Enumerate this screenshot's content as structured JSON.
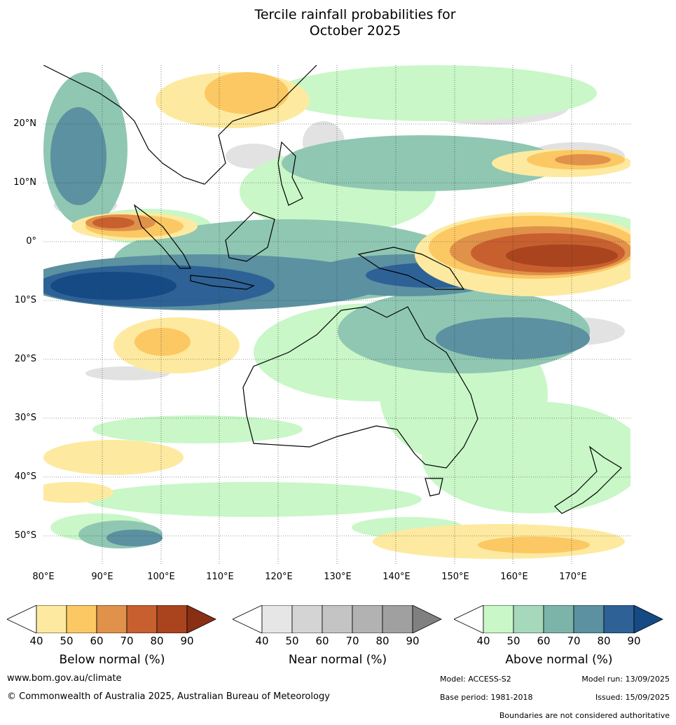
{
  "title": {
    "line1": "Tercile rainfall probabilities for",
    "line2": "October 2025"
  },
  "map": {
    "lat_labels": [
      "20°N",
      "10°N",
      "0°",
      "10°S",
      "20°S",
      "30°S",
      "40°S",
      "50°S"
    ],
    "lon_labels": [
      "80°E",
      "90°E",
      "100°E",
      "110°E",
      "120°E",
      "130°E",
      "140°E",
      "150°E",
      "160°E",
      "170°E"
    ],
    "lon_range": [
      80,
      180
    ],
    "lat_range": [
      -55,
      30
    ],
    "grid_lines": "dotted",
    "land_outline_color": "#000000",
    "ocean_color": "#ffffff"
  },
  "colorbars": [
    {
      "title": "Below normal (%)",
      "ticks": [
        "40",
        "50",
        "60",
        "70",
        "80",
        "90"
      ],
      "colors": [
        "#ffffff",
        "#fdeaa0",
        "#fbc863",
        "#e0914a",
        "#c85f2e",
        "#a9441f",
        "#8a2e14"
      ]
    },
    {
      "title": "Near normal (%)",
      "ticks": [
        "40",
        "50",
        "60",
        "70",
        "80",
        "90"
      ],
      "colors": [
        "#ffffff",
        "#e6e6e6",
        "#d4d4d4",
        "#c4c4c4",
        "#b2b2b2",
        "#a0a0a0",
        "#808080"
      ]
    },
    {
      "title": "Above normal (%)",
      "ticks": [
        "40",
        "50",
        "60",
        "70",
        "80",
        "90"
      ],
      "colors": [
        "#ffffff",
        "#c9f7c8",
        "#a6d9bb",
        "#7db4aa",
        "#5b91a0",
        "#2e6296",
        "#164a84"
      ]
    }
  ],
  "footer": {
    "url": "www.bom.gov.au/climate",
    "copyright": "© Commonwealth of Australia 2025, Australian Bureau of Meteorology",
    "model": "Model: ACCESS-S2",
    "model_run": "Model run: 13/09/2025",
    "base_period": "Base period: 1981-2018",
    "issued": "Issued: 15/09/2025",
    "disclaimer": "Boundaries are not considered authoritative"
  }
}
